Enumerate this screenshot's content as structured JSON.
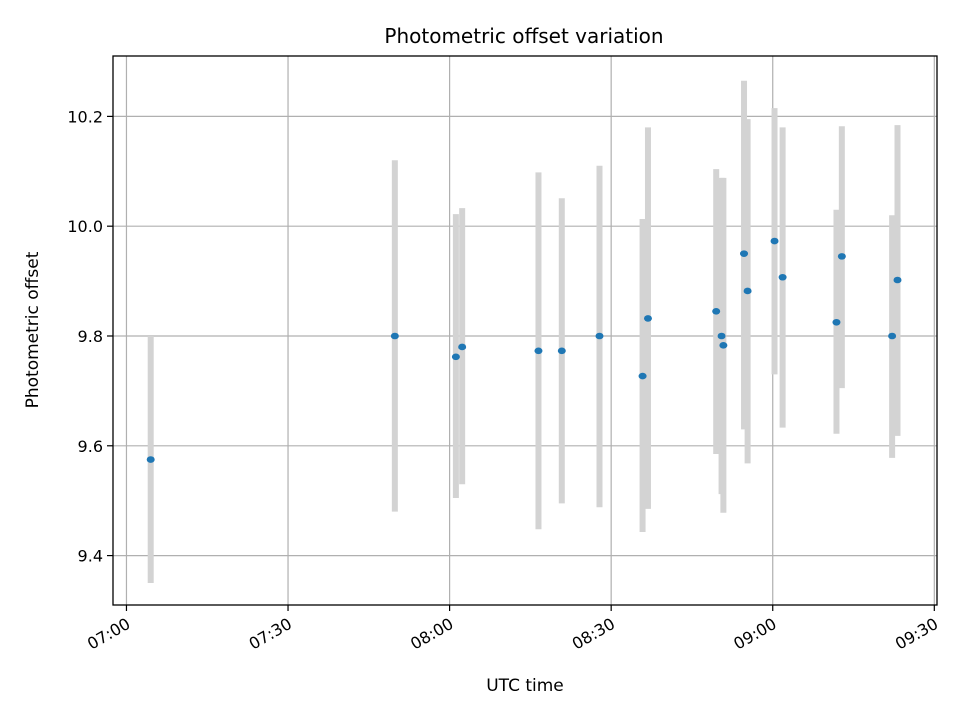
{
  "chart_data": {
    "type": "scatter",
    "title": "Photometric offset variation",
    "xlabel": "UTC time",
    "ylabel": "Photometric offset",
    "x_axis_type": "time",
    "xlim": [
      "06:57:30",
      "09:30:30"
    ],
    "ylim": [
      9.31,
      10.31
    ],
    "x_ticks": [
      "07:00",
      "07:30",
      "08:00",
      "08:30",
      "09:00",
      "09:30"
    ],
    "y_ticks": [
      9.4,
      9.6,
      9.8,
      10.0,
      10.2
    ],
    "y_tick_labels": [
      "9.4",
      "9.6",
      "9.8",
      "10.0",
      "10.2"
    ],
    "grid": true,
    "colors": {
      "point": "#1f77b4",
      "errorbar": "#d3d3d3",
      "grid": "#b0b0b0"
    },
    "series": [
      {
        "points": [
          {
            "x": "07:04:30",
            "y": 9.575,
            "low": 9.35,
            "high": 9.8
          },
          {
            "x": "07:49:50",
            "y": 9.8,
            "low": 9.48,
            "high": 10.12
          },
          {
            "x": "08:01:10",
            "y": 9.762,
            "low": 9.505,
            "high": 10.022
          },
          {
            "x": "08:02:20",
            "y": 9.78,
            "low": 9.53,
            "high": 10.033
          },
          {
            "x": "08:16:30",
            "y": 9.773,
            "low": 9.448,
            "high": 10.098
          },
          {
            "x": "08:20:50",
            "y": 9.773,
            "low": 9.495,
            "high": 10.051
          },
          {
            "x": "08:27:50",
            "y": 9.8,
            "low": 9.488,
            "high": 10.11
          },
          {
            "x": "08:35:50",
            "y": 9.727,
            "low": 9.443,
            "high": 10.013
          },
          {
            "x": "08:36:50",
            "y": 9.832,
            "low": 9.485,
            "high": 10.18
          },
          {
            "x": "08:49:30",
            "y": 9.845,
            "low": 9.585,
            "high": 10.104
          },
          {
            "x": "08:50:30",
            "y": 9.8,
            "low": 9.512,
            "high": 10.088
          },
          {
            "x": "08:50:50",
            "y": 9.783,
            "low": 9.478,
            "high": 10.088
          },
          {
            "x": "08:54:40",
            "y": 9.95,
            "low": 9.63,
            "high": 10.265
          },
          {
            "x": "08:55:20",
            "y": 9.882,
            "low": 9.568,
            "high": 10.195
          },
          {
            "x": "09:00:20",
            "y": 9.973,
            "low": 9.73,
            "high": 10.215
          },
          {
            "x": "09:01:50",
            "y": 9.907,
            "low": 9.633,
            "high": 10.18
          },
          {
            "x": "09:11:50",
            "y": 9.825,
            "low": 9.622,
            "high": 10.03
          },
          {
            "x": "09:12:50",
            "y": 9.945,
            "low": 9.705,
            "high": 10.182
          },
          {
            "x": "09:22:10",
            "y": 9.8,
            "low": 9.578,
            "high": 10.02
          },
          {
            "x": "09:23:10",
            "y": 9.902,
            "low": 9.618,
            "high": 10.184
          }
        ]
      }
    ]
  }
}
